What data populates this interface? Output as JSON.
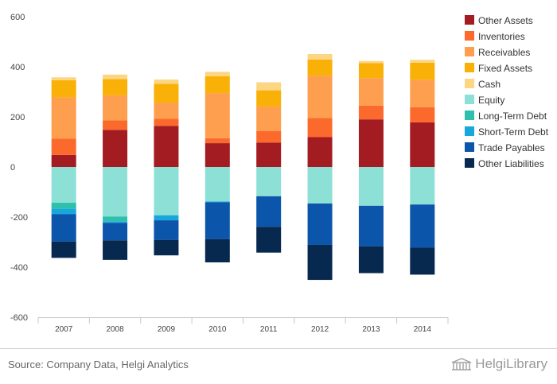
{
  "chart_data": {
    "type": "bar",
    "stacked": true,
    "categories": [
      "2007",
      "2008",
      "2009",
      "2010",
      "2011",
      "2012",
      "2013",
      "2014"
    ],
    "ylim": [
      -600,
      600
    ],
    "yticks": [
      -600,
      -400,
      -200,
      0,
      200,
      400,
      600
    ],
    "grid": false,
    "legend_position": "right",
    "series": [
      {
        "name": "Other Assets",
        "group": "asset",
        "color": "#a31c22",
        "values": [
          48,
          148,
          164,
          95,
          97,
          119,
          190,
          178
        ]
      },
      {
        "name": "Inventories",
        "group": "asset",
        "color": "#fb6a2c",
        "values": [
          65,
          38,
          28,
          20,
          47,
          77,
          55,
          60
        ]
      },
      {
        "name": "Receivables",
        "group": "asset",
        "color": "#fd9f4f",
        "values": [
          165,
          100,
          65,
          180,
          97,
          168,
          110,
          110
        ]
      },
      {
        "name": "Fixed Assets",
        "group": "asset",
        "color": "#f9b107",
        "values": [
          68,
          65,
          75,
          67,
          65,
          65,
          60,
          68
        ]
      },
      {
        "name": "Cash",
        "group": "asset",
        "color": "#fdd684",
        "values": [
          12,
          18,
          17,
          18,
          32,
          22,
          8,
          12
        ]
      },
      {
        "name": "Equity",
        "group": "liability",
        "color": "#8de0d6",
        "values": [
          -143,
          -198,
          -193,
          -138,
          -117,
          -146,
          -155,
          -150
        ]
      },
      {
        "name": "Long-Term Debt",
        "group": "liability",
        "color": "#2ebfad",
        "values": [
          -25,
          -20,
          0,
          0,
          0,
          0,
          0,
          0
        ]
      },
      {
        "name": "Short-Term Debt",
        "group": "liability",
        "color": "#17a7dd",
        "values": [
          -20,
          -5,
          -20,
          -3,
          0,
          0,
          0,
          0
        ]
      },
      {
        "name": "Trade Payables",
        "group": "liability",
        "color": "#0b55ab",
        "values": [
          -110,
          -70,
          -78,
          -147,
          -122,
          -165,
          -162,
          -172
        ]
      },
      {
        "name": "Other Liabilities",
        "group": "liability",
        "color": "#07284f",
        "values": [
          -65,
          -78,
          -62,
          -93,
          -103,
          -140,
          -107,
          -108
        ]
      }
    ]
  },
  "legend_order": [
    "Other Assets",
    "Inventories",
    "Receivables",
    "Fixed Assets",
    "Cash",
    "Equity",
    "Long-Term Debt",
    "Short-Term Debt",
    "Trade Payables",
    "Other Liabilities"
  ],
  "footer": {
    "source": "Source: Company Data, Helgi Analytics",
    "brand": "HelgiLibrary"
  },
  "colors": {
    "axis": "#c8c8c8",
    "tick_text": "#444444",
    "footer_text": "#666666",
    "brand_text": "#9a9a9a"
  }
}
